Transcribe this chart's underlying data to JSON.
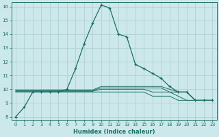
{
  "xlabel": "Humidex (Indice chaleur)",
  "ylabel": "",
  "bg_color": "#cce8eb",
  "grid_color": "#b0d0d4",
  "line_color": "#1a6e64",
  "xlim": [
    -0.5,
    23.5
  ],
  "ylim": [
    7.8,
    16.3
  ],
  "yticks": [
    8,
    9,
    10,
    11,
    12,
    13,
    14,
    15,
    16
  ],
  "xticks": [
    0,
    1,
    2,
    3,
    4,
    5,
    6,
    7,
    8,
    9,
    10,
    11,
    12,
    13,
    14,
    15,
    16,
    17,
    18,
    19,
    20,
    21,
    22,
    23
  ],
  "main_line_x": [
    0,
    1,
    2,
    3,
    4,
    5,
    6,
    7,
    8,
    9,
    10,
    11,
    12,
    13,
    14,
    15,
    16,
    17,
    18,
    19,
    20,
    21,
    22,
    23
  ],
  "main_line_y": [
    8.0,
    8.7,
    9.8,
    9.8,
    9.8,
    9.8,
    10.0,
    11.5,
    13.3,
    14.8,
    16.1,
    15.9,
    14.0,
    13.8,
    11.8,
    11.5,
    11.15,
    10.8,
    10.2,
    9.8,
    9.8,
    9.2,
    9.2,
    9.2
  ],
  "flat_lines": [
    {
      "y": [
        9.8,
        9.8,
        9.8,
        9.8,
        9.8,
        9.8,
        9.8,
        9.8,
        9.8,
        9.8,
        9.8,
        9.8,
        9.8,
        9.8,
        9.8,
        9.8,
        9.5,
        9.5,
        9.5,
        9.2,
        9.2,
        9.2,
        9.2,
        9.2
      ],
      "start": 0
    },
    {
      "y": [
        9.85,
        9.85,
        9.85,
        9.85,
        9.85,
        9.85,
        9.85,
        9.85,
        9.85,
        9.85,
        10.0,
        10.0,
        10.0,
        10.0,
        10.0,
        10.0,
        9.8,
        9.8,
        9.8,
        9.5,
        9.2,
        9.2,
        9.2,
        9.2
      ],
      "start": 0
    },
    {
      "y": [
        9.9,
        9.9,
        9.9,
        9.9,
        9.9,
        9.9,
        9.9,
        9.9,
        9.9,
        9.9,
        10.1,
        10.1,
        10.1,
        10.1,
        10.1,
        10.1,
        10.1,
        10.1,
        9.8,
        9.8,
        9.8,
        9.2,
        9.2,
        9.2
      ],
      "start": 0
    },
    {
      "y": [
        9.95,
        9.95,
        9.95,
        9.95,
        9.95,
        9.95,
        9.95,
        9.95,
        9.95,
        9.95,
        10.2,
        10.2,
        10.2,
        10.2,
        10.2,
        10.2,
        10.2,
        10.2,
        10.0,
        9.8,
        9.8,
        9.2,
        9.2,
        9.2
      ],
      "start": 0
    }
  ]
}
